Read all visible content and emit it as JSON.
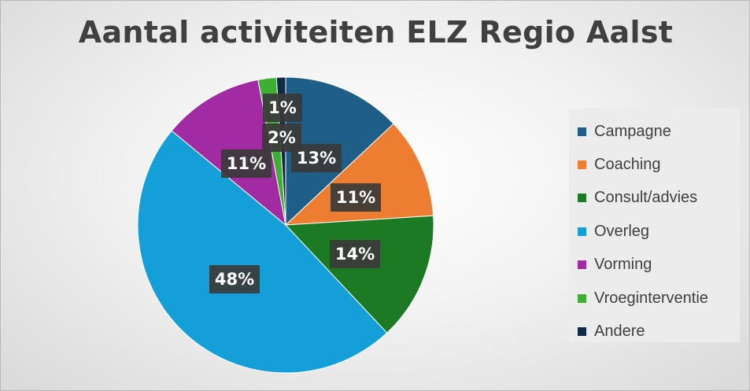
{
  "chart_data": {
    "type": "pie",
    "title": "Aantal activiteiten ELZ Regio Aalst",
    "categories": [
      "Campagne",
      "Coaching",
      "Consult/advies",
      "Overleg",
      "Vorming",
      "Vroeginterventie",
      "Andere"
    ],
    "values": [
      13,
      11,
      14,
      48,
      11,
      2,
      1
    ],
    "labels": [
      "13%",
      "11%",
      "14%",
      "48%",
      "11%",
      "2%",
      "1%"
    ],
    "colors": [
      "#1f5f87",
      "#ed7d31",
      "#1b7a24",
      "#149fd9",
      "#a02ba3",
      "#3eae35",
      "#0f2b45"
    ],
    "legend_position": "right",
    "start_angle_deg": 0,
    "direction": "clockwise"
  }
}
